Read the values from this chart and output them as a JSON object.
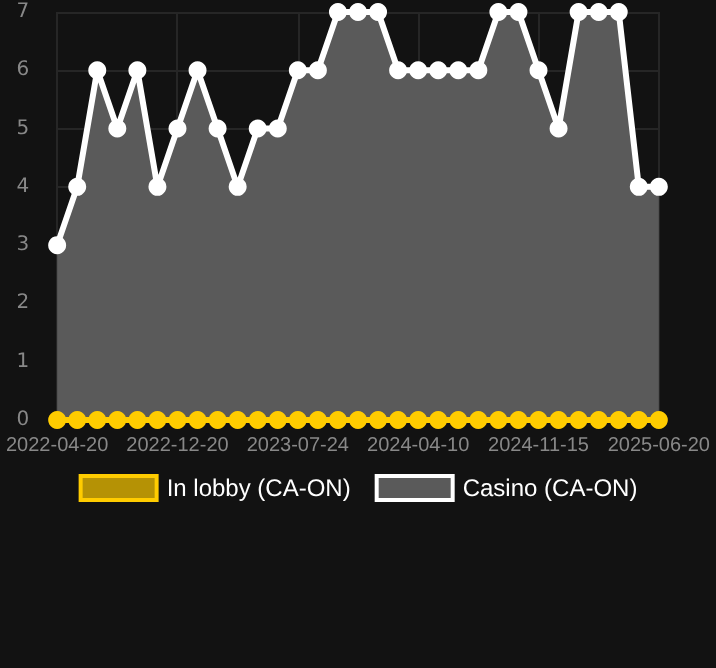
{
  "chart_data": {
    "type": "line",
    "categories": [
      "2022-04-20",
      null,
      null,
      null,
      null,
      null,
      "2022-12-20",
      null,
      null,
      null,
      null,
      null,
      "2023-07-24",
      null,
      null,
      null,
      null,
      null,
      "2024-04-10",
      null,
      null,
      null,
      null,
      null,
      "2024-11-15",
      null,
      null,
      null,
      null,
      null,
      "2025-06-20"
    ],
    "series": [
      {
        "name": "In lobby (CA-ON)",
        "color": "#ffcc00",
        "values": [
          0,
          0,
          0,
          0,
          0,
          0,
          0,
          0,
          0,
          0,
          0,
          0,
          0,
          0,
          0,
          0,
          0,
          0,
          0,
          0,
          0,
          0,
          0,
          0,
          0,
          0,
          0,
          0,
          0,
          0,
          0
        ]
      },
      {
        "name": "Casino (CA-ON)",
        "color": "#ffffff",
        "type": "area",
        "values": [
          3,
          4,
          6,
          5,
          6,
          4,
          5,
          6,
          5,
          4,
          5,
          5,
          6,
          6,
          7,
          7,
          7,
          6,
          6,
          6,
          6,
          6,
          7,
          7,
          6,
          5,
          7,
          7,
          7,
          4,
          4
        ]
      }
    ],
    "ylim": [
      0,
      7
    ],
    "yticks": [
      0,
      1,
      2,
      3,
      4,
      5,
      6,
      7
    ],
    "grid": true,
    "legend": "bottom",
    "marker": "circle",
    "line_style": "solid"
  }
}
